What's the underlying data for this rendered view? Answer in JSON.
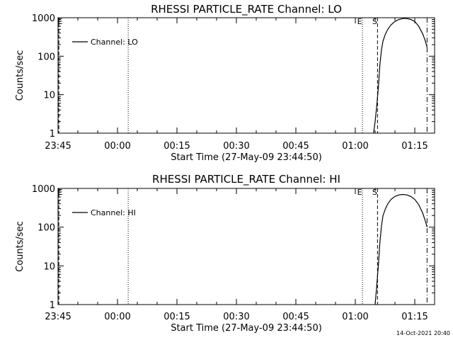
{
  "footer": {
    "timestamp": "14-Oct-2021 20:40"
  },
  "chart_data": [
    {
      "type": "line",
      "title": "RHESSI PARTICLE_RATE Channel: LO",
      "xlabel": "Start Time (27-May-09 23:44:50)",
      "ylabel": "Counts/sec",
      "yscale": "log",
      "ylim": [
        1,
        1000
      ],
      "xlim_minutes": [
        0,
        95
      ],
      "x_ticks": [
        "23:45",
        "00:00",
        "00:15",
        "00:30",
        "00:45",
        "01:00",
        "01:15"
      ],
      "y_ticks": [
        "1",
        "10",
        "100",
        "1000"
      ],
      "legend": {
        "entry": "Channel: LO",
        "placement": "top-left"
      },
      "markers": [
        {
          "label": "",
          "style": "dashed",
          "x_minutes": 0.2
        },
        {
          "label": "",
          "style": "dotted",
          "x_minutes": 17.7
        },
        {
          "label": "E",
          "style": "dotted",
          "x_minutes": 76.8
        },
        {
          "label": "S",
          "style": "dashed",
          "x_minutes": 80.6
        },
        {
          "label": "",
          "style": "dashdot",
          "x_minutes": 93.1
        }
      ],
      "marker_labels_left": "E",
      "series": [
        {
          "name": "Channel: LO",
          "x_minutes": [
            79.6,
            80.0,
            80.4,
            80.8,
            81.2,
            81.6,
            82.0,
            82.6,
            83.2,
            84.0,
            85.0,
            86.0,
            87.0,
            88.0,
            89.0,
            90.0,
            91.0,
            92.0,
            92.6,
            93.1
          ],
          "values": [
            1,
            2,
            5,
            15,
            60,
            150,
            250,
            380,
            500,
            650,
            800,
            900,
            950,
            950,
            900,
            800,
            600,
            380,
            260,
            170
          ]
        }
      ]
    },
    {
      "type": "line",
      "title": "RHESSI PARTICLE_RATE Channel: HI",
      "xlabel": "Start Time (27-May-09 23:44:50)",
      "ylabel": "Counts/sec",
      "yscale": "log",
      "ylim": [
        1,
        1000
      ],
      "xlim_minutes": [
        0,
        95
      ],
      "x_ticks": [
        "23:45",
        "00:00",
        "00:15",
        "00:30",
        "00:45",
        "01:00",
        "01:15"
      ],
      "y_ticks": [
        "1",
        "10",
        "100",
        "1000"
      ],
      "legend": {
        "entry": "Channel: HI",
        "placement": "top-left"
      },
      "markers": [
        {
          "label": "",
          "style": "dashed",
          "x_minutes": 0.2
        },
        {
          "label": "",
          "style": "dotted",
          "x_minutes": 17.7
        },
        {
          "label": "E",
          "style": "dotted",
          "x_minutes": 76.8
        },
        {
          "label": "S",
          "style": "dashed",
          "x_minutes": 80.6
        },
        {
          "label": "",
          "style": "dashdot",
          "x_minutes": 93.1
        }
      ],
      "marker_labels_left": "E",
      "series": [
        {
          "name": "Channel: HI",
          "x_minutes": [
            80.0,
            80.4,
            80.8,
            81.2,
            81.6,
            82.0,
            82.6,
            83.2,
            84.0,
            85.0,
            86.0,
            87.0,
            88.0,
            89.0,
            90.0,
            91.0,
            92.0,
            92.6,
            93.1
          ],
          "values": [
            1,
            3,
            10,
            40,
            110,
            200,
            300,
            400,
            520,
            620,
            680,
            700,
            680,
            620,
            520,
            380,
            230,
            150,
            100
          ]
        }
      ]
    }
  ]
}
